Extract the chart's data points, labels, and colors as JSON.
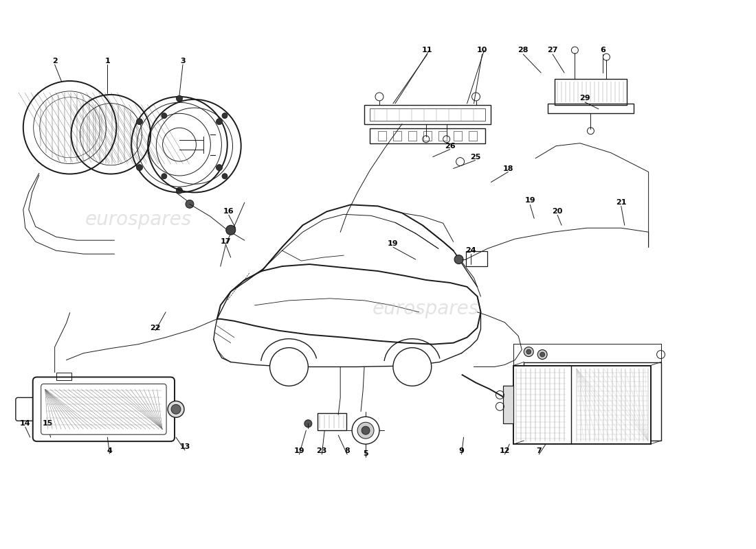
{
  "background_color": "#ffffff",
  "line_color": "#1a1a1a",
  "label_color": "#000000",
  "fig_width": 11.0,
  "fig_height": 8.0,
  "dpi": 100
}
